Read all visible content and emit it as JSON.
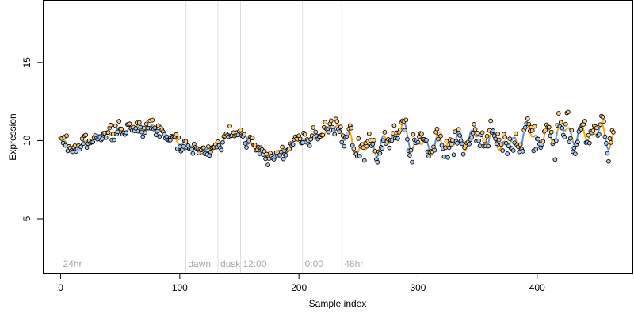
{
  "chart_data": {
    "type": "scatter",
    "title": "",
    "xlabel": "Sample index",
    "ylabel": "Expression",
    "xlim": [
      -15,
      480
    ],
    "ylim": [
      1.5,
      19
    ],
    "x_ticks": [
      0,
      100,
      200,
      300,
      400
    ],
    "y_ticks": [
      5,
      10,
      15
    ],
    "grid": false,
    "colors": {
      "above_fit": "#ffcc80",
      "below_fit": "#a8c8f0",
      "fit_above": "#ffa500",
      "fit_below": "#5a8fd6",
      "phase_line": "#dcdcdc",
      "phase_label": "#a8a8a8"
    },
    "phase_markers": [
      {
        "x": 0,
        "label": "24hr",
        "line": false
      },
      {
        "x": 105,
        "label": "dawn",
        "line": true
      },
      {
        "x": 132,
        "label": "dusk",
        "line": true
      },
      {
        "x": 151,
        "label": "12:00",
        "line": true
      },
      {
        "x": 203,
        "label": "0:00",
        "line": true
      },
      {
        "x": 236,
        "label": "48hr",
        "line": true
      }
    ],
    "n_points": 465,
    "fit_trend": [
      [
        0,
        10.0
      ],
      [
        10,
        9.5
      ],
      [
        20,
        9.8
      ],
      [
        35,
        10.4
      ],
      [
        50,
        10.6
      ],
      [
        65,
        10.9
      ],
      [
        80,
        10.8
      ],
      [
        95,
        10.1
      ],
      [
        110,
        9.6
      ],
      [
        122,
        9.2
      ],
      [
        135,
        9.9
      ],
      [
        145,
        10.5
      ],
      [
        155,
        10.3
      ],
      [
        165,
        9.4
      ],
      [
        175,
        9.0
      ],
      [
        185,
        9.2
      ],
      [
        195,
        9.8
      ],
      [
        205,
        10.1
      ],
      [
        215,
        10.2
      ],
      [
        225,
        10.7
      ],
      [
        235,
        10.9
      ],
      [
        245,
        9.6
      ],
      [
        260,
        9.5
      ],
      [
        275,
        9.9
      ],
      [
        285,
        10.8
      ],
      [
        295,
        9.9
      ],
      [
        305,
        9.7
      ],
      [
        320,
        9.8
      ],
      [
        335,
        10.0
      ],
      [
        350,
        10.3
      ],
      [
        365,
        10.0
      ],
      [
        380,
        9.7
      ],
      [
        392,
        10.6
      ],
      [
        405,
        10.1
      ],
      [
        420,
        10.7
      ],
      [
        435,
        10.3
      ],
      [
        450,
        10.6
      ],
      [
        465,
        10.0
      ]
    ],
    "residual_amplitude": [
      [
        0,
        0.35
      ],
      [
        220,
        0.45
      ],
      [
        240,
        0.55
      ],
      [
        300,
        0.65
      ],
      [
        465,
        0.75
      ]
    ],
    "fit_wiggle_amplitude": [
      [
        0,
        0.2
      ],
      [
        220,
        0.25
      ],
      [
        240,
        0.7
      ],
      [
        465,
        0.8
      ]
    ],
    "noise_seed": 7
  }
}
